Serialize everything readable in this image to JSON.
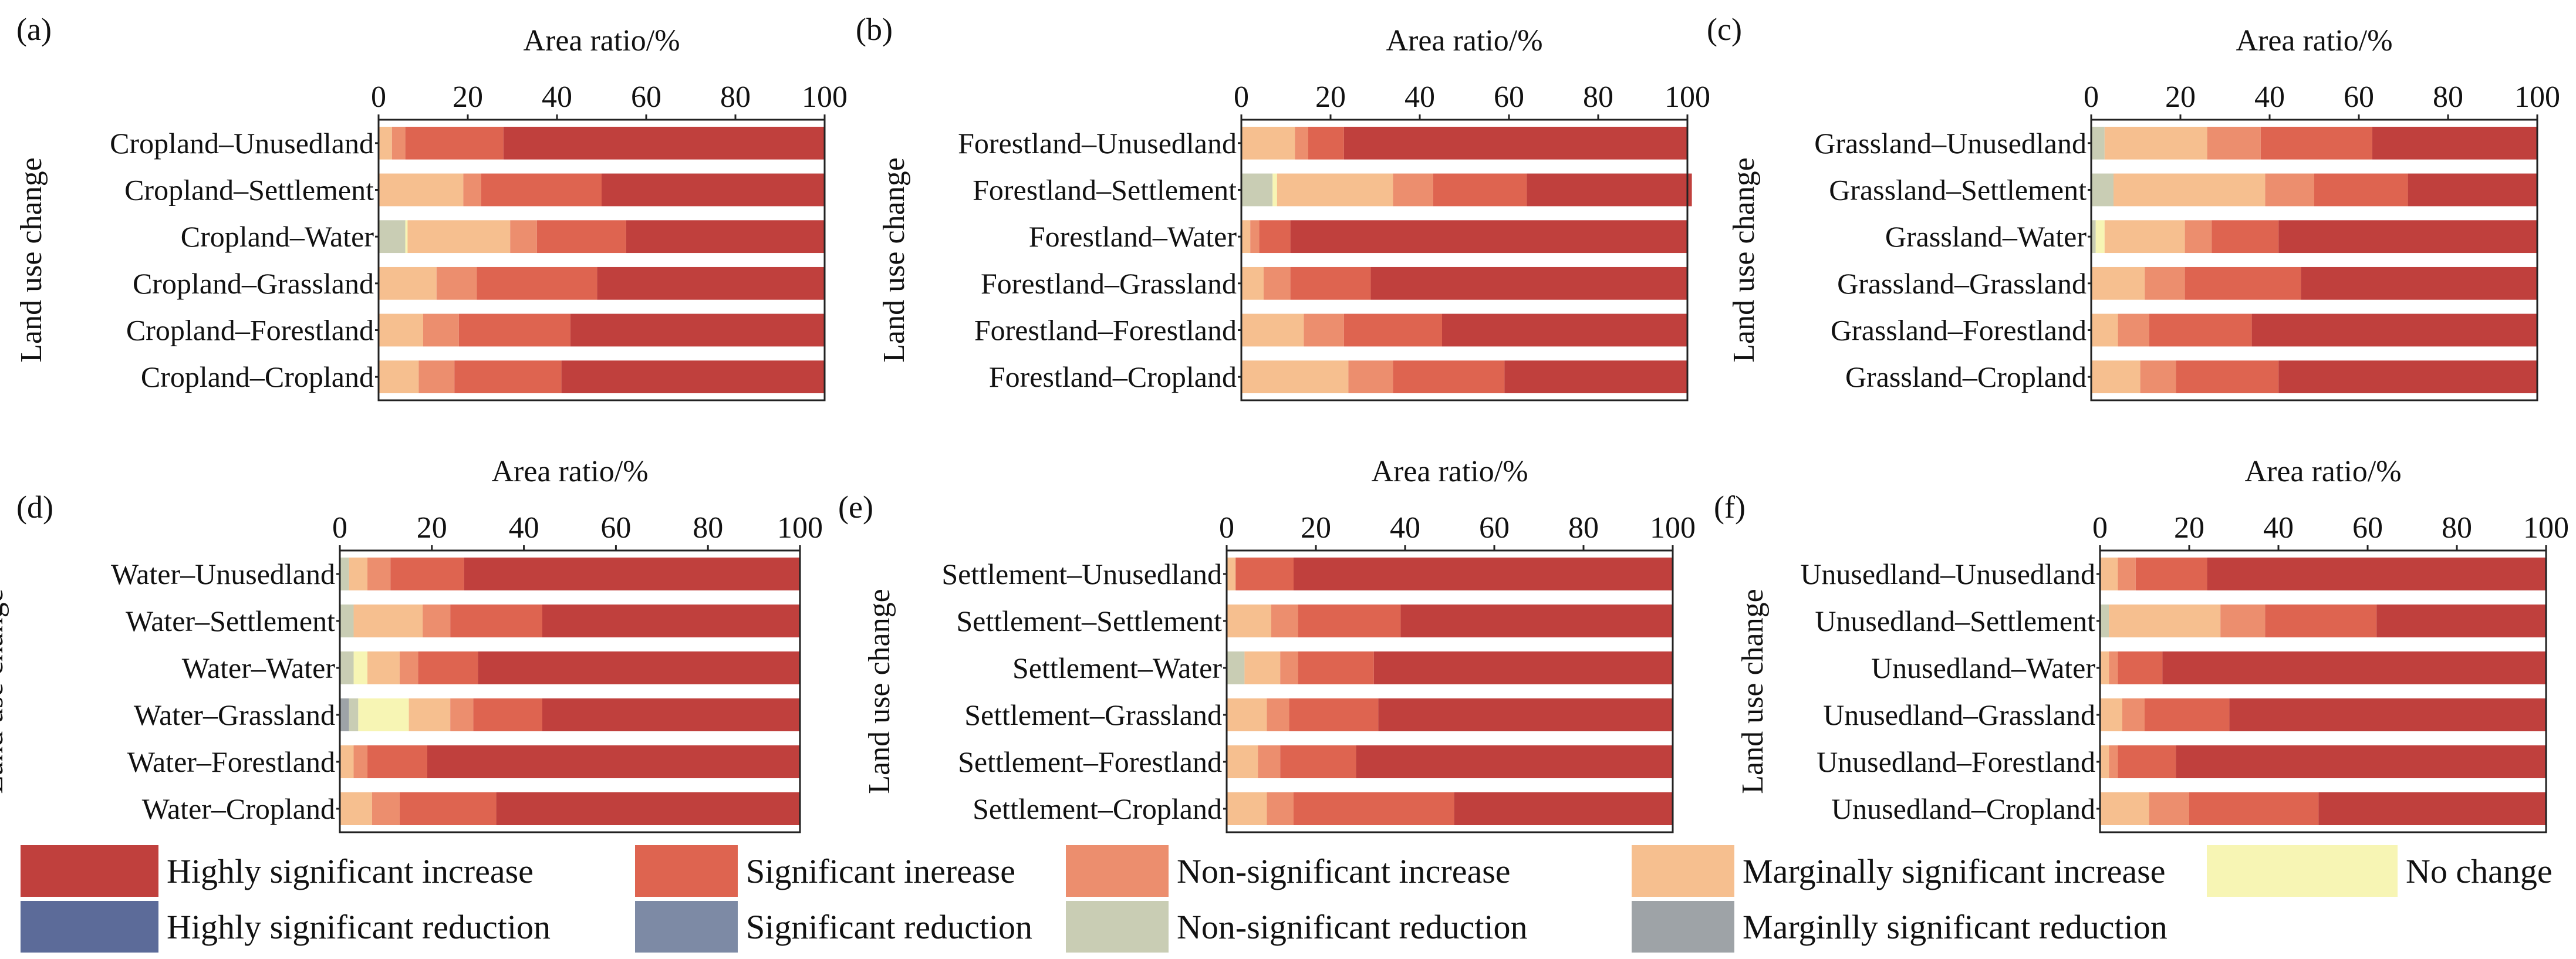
{
  "figure": {
    "xlabel": "Area ratio/%",
    "ylabel": "Land use change",
    "xlim": [
      0,
      100
    ],
    "xticks": [
      "0",
      "20",
      "40",
      "60",
      "80",
      "100"
    ]
  },
  "legend": [
    {
      "key": "hsi",
      "label": "Highly significant increase",
      "color": "#c0403d"
    },
    {
      "key": "si",
      "label": "Significant inerease",
      "color": "#de6450"
    },
    {
      "key": "nsi",
      "label": "Non-significant increase",
      "color": "#ec8e6e"
    },
    {
      "key": "msi",
      "label": "Marginally significant increase",
      "color": "#f6bf8f"
    },
    {
      "key": "nc",
      "label": "No change",
      "color": "#f7f5b4"
    },
    {
      "key": "hsr",
      "label": "Highly significant reduction",
      "color": "#5c6b99"
    },
    {
      "key": "sr",
      "label": "Significant reduction",
      "color": "#7d8aa5"
    },
    {
      "key": "nsr",
      "label": "Non-significant reduction",
      "color": "#c9cdb4"
    },
    {
      "key": "mr",
      "label": "Marginlly significant reduction",
      "color": "#9ea3a7"
    }
  ],
  "chart_data": [
    {
      "type": "bar",
      "stacked": true,
      "orientation": "horizontal",
      "label": "(a)",
      "categories": [
        "Cropland–Unusedland",
        "Cropland–Settlement",
        "Cropland–Water",
        "Cropland–Grassland",
        "Cropland–Forestland",
        "Cropland–Cropland"
      ],
      "series": [
        {
          "name": "Highly significant reduction",
          "values": [
            0,
            0,
            0,
            0,
            0,
            0
          ]
        },
        {
          "name": "Significant reduction",
          "values": [
            0,
            0,
            0,
            0,
            0,
            0
          ]
        },
        {
          "name": "Marginlly significant reduction",
          "values": [
            0,
            0,
            0,
            0,
            0,
            0
          ]
        },
        {
          "name": "Non-significant reduction",
          "values": [
            0,
            0,
            6,
            0,
            0,
            0
          ]
        },
        {
          "name": "No change",
          "values": [
            0,
            0,
            0.5,
            0,
            0,
            0
          ]
        },
        {
          "name": "Marginally significant increase",
          "values": [
            3,
            19,
            23,
            13,
            10,
            9
          ]
        },
        {
          "name": "Non-significant increase",
          "values": [
            3,
            4,
            6,
            9,
            8,
            8
          ]
        },
        {
          "name": "Significant inerease",
          "values": [
            22,
            27,
            20,
            27,
            25,
            24
          ]
        },
        {
          "name": "Highly significant increase",
          "values": [
            72,
            50,
            44.5,
            51,
            57,
            59
          ]
        }
      ]
    },
    {
      "type": "bar",
      "stacked": true,
      "orientation": "horizontal",
      "label": "(b)",
      "categories": [
        "Forestland–Unusedland",
        "Forestland–Settlement",
        "Forestland–Water",
        "Forestland–Grassland",
        "Forestland–Forestland",
        "Forestland–Cropland"
      ],
      "series": [
        {
          "name": "Highly significant reduction",
          "values": [
            0,
            0,
            0,
            0,
            0,
            0
          ]
        },
        {
          "name": "Significant reduction",
          "values": [
            0,
            0,
            0,
            0,
            0,
            0
          ]
        },
        {
          "name": "Marginlly significant reduction",
          "values": [
            0,
            0,
            0,
            0,
            0,
            0
          ]
        },
        {
          "name": "Non-significant reduction",
          "values": [
            0,
            7,
            0,
            0,
            0,
            0
          ]
        },
        {
          "name": "No change",
          "values": [
            0,
            1,
            0,
            0,
            0,
            0
          ]
        },
        {
          "name": "Marginally significant increase",
          "values": [
            12,
            26,
            2,
            5,
            14,
            24
          ]
        },
        {
          "name": "Non-significant increase",
          "values": [
            3,
            9,
            2,
            6,
            9,
            10
          ]
        },
        {
          "name": "Significant inerease",
          "values": [
            8,
            21,
            7,
            18,
            22,
            25
          ]
        },
        {
          "name": "Highly significant increase",
          "values": [
            77,
            37,
            89,
            71,
            55,
            41
          ]
        }
      ]
    },
    {
      "type": "bar",
      "stacked": true,
      "orientation": "horizontal",
      "label": "(c)",
      "categories": [
        "Grassland–Unusedland",
        "Grassland–Settlement",
        "Grassland–Water",
        "Grassland–Grassland",
        "Grassland–Forestland",
        "Grassland–Cropland"
      ],
      "series": [
        {
          "name": "Highly significant reduction",
          "values": [
            0,
            0,
            0,
            0,
            0,
            0
          ]
        },
        {
          "name": "Significant reduction",
          "values": [
            0,
            0,
            0,
            0,
            0,
            0
          ]
        },
        {
          "name": "Marginlly significant reduction",
          "values": [
            0,
            0,
            0,
            0,
            0,
            0
          ]
        },
        {
          "name": "Non-significant reduction",
          "values": [
            3,
            5,
            1,
            0,
            0,
            0
          ]
        },
        {
          "name": "No change",
          "values": [
            0,
            0,
            2,
            0,
            0,
            0
          ]
        },
        {
          "name": "Marginally significant increase",
          "values": [
            23,
            34,
            18,
            12,
            6,
            11
          ]
        },
        {
          "name": "Non-significant increase",
          "values": [
            12,
            11,
            6,
            9,
            7,
            8
          ]
        },
        {
          "name": "Significant inerease",
          "values": [
            25,
            21,
            15,
            26,
            23,
            23
          ]
        },
        {
          "name": "Highly significant increase",
          "values": [
            37,
            29,
            58,
            53,
            64,
            58
          ]
        }
      ]
    },
    {
      "type": "bar",
      "stacked": true,
      "orientation": "horizontal",
      "label": "(d)",
      "categories": [
        "Water–Unusedland",
        "Water–Settlement",
        "Water–Water",
        "Water–Grassland",
        "Water–Forestland",
        "Water–Cropland"
      ],
      "series": [
        {
          "name": "Highly significant reduction",
          "values": [
            0,
            0,
            0,
            0,
            0,
            0
          ]
        },
        {
          "name": "Significant reduction",
          "values": [
            0,
            0,
            0,
            0,
            0,
            0
          ]
        },
        {
          "name": "Marginlly significant reduction",
          "values": [
            0,
            0,
            0,
            2,
            0,
            0
          ]
        },
        {
          "name": "Non-significant reduction",
          "values": [
            2,
            3,
            3,
            2,
            0,
            0
          ]
        },
        {
          "name": "No change",
          "values": [
            0,
            0,
            3,
            11,
            0,
            0
          ]
        },
        {
          "name": "Marginally significant increase",
          "values": [
            4,
            15,
            7,
            9,
            3,
            7
          ]
        },
        {
          "name": "Non-significant increase",
          "values": [
            5,
            6,
            4,
            5,
            3,
            6
          ]
        },
        {
          "name": "Significant inerease",
          "values": [
            16,
            20,
            13,
            15,
            13,
            21
          ]
        },
        {
          "name": "Highly significant increase",
          "values": [
            73,
            56,
            70,
            56,
            81,
            66
          ]
        }
      ]
    },
    {
      "type": "bar",
      "stacked": true,
      "orientation": "horizontal",
      "label": "(e)",
      "categories": [
        "Settlement–Unusedland",
        "Settlement–Settlement",
        "Settlement–Water",
        "Settlement–Grassland",
        "Settlement–Forestland",
        "Settlement–Cropland"
      ],
      "series": [
        {
          "name": "Highly significant reduction",
          "values": [
            0,
            0,
            0,
            0,
            0,
            0
          ]
        },
        {
          "name": "Significant reduction",
          "values": [
            0,
            0,
            0,
            0,
            0,
            0
          ]
        },
        {
          "name": "Marginlly significant reduction",
          "values": [
            0,
            0,
            0,
            0,
            0,
            0
          ]
        },
        {
          "name": "Non-significant reduction",
          "values": [
            0,
            0,
            4,
            0,
            0,
            0
          ]
        },
        {
          "name": "No change",
          "values": [
            0,
            0,
            0,
            0,
            0,
            0
          ]
        },
        {
          "name": "Marginally significant increase",
          "values": [
            2,
            10,
            8,
            9,
            7,
            9
          ]
        },
        {
          "name": "Non-significant increase",
          "values": [
            0,
            6,
            4,
            5,
            5,
            6
          ]
        },
        {
          "name": "Significant inerease",
          "values": [
            13,
            23,
            17,
            20,
            17,
            36
          ]
        },
        {
          "name": "Highly significant increase",
          "values": [
            85,
            61,
            67,
            66,
            71,
            49
          ]
        }
      ]
    },
    {
      "type": "bar",
      "stacked": true,
      "orientation": "horizontal",
      "label": "(f)",
      "categories": [
        "Unusedland–Unusedland",
        "Unusedland–Settlement",
        "Unusedland–Water",
        "Unusedland–Grassland",
        "Unusedland–Forestland",
        "Unusedland–Cropland"
      ],
      "series": [
        {
          "name": "Highly significant reduction",
          "values": [
            0,
            0,
            0,
            0,
            0,
            0
          ]
        },
        {
          "name": "Significant reduction",
          "values": [
            0,
            0,
            0,
            0,
            0,
            0
          ]
        },
        {
          "name": "Marginlly significant reduction",
          "values": [
            0,
            0,
            0,
            0,
            0,
            0
          ]
        },
        {
          "name": "Non-significant reduction",
          "values": [
            0,
            2,
            0,
            0,
            0,
            0
          ]
        },
        {
          "name": "No change",
          "values": [
            0,
            0,
            0,
            0,
            0,
            0
          ]
        },
        {
          "name": "Marginally significant increase",
          "values": [
            4,
            25,
            2,
            5,
            2,
            11
          ]
        },
        {
          "name": "Non-significant increase",
          "values": [
            4,
            10,
            2,
            5,
            2,
            9
          ]
        },
        {
          "name": "Significant inerease",
          "values": [
            16,
            25,
            10,
            19,
            13,
            29
          ]
        },
        {
          "name": "Highly significant increase",
          "values": [
            76,
            38,
            86,
            71,
            83,
            51
          ]
        }
      ]
    }
  ]
}
